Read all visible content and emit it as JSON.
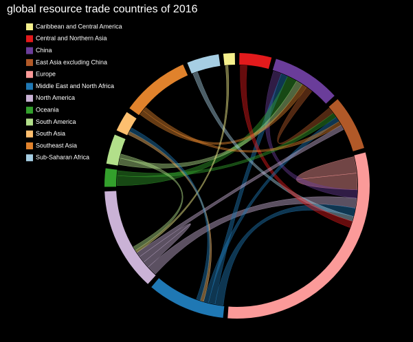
{
  "chart_data": {
    "type": "chord",
    "title": "global resource trade countries of 2016",
    "groups": [
      {
        "name": "Caribbean and Central America",
        "color": "#f5f08c",
        "value": 5
      },
      {
        "name": "Central and Northern Asia",
        "color": "#e31a1c",
        "value": 14
      },
      {
        "name": "China",
        "color": "#6a3d9a",
        "value": 30
      },
      {
        "name": "East Asia excluding China",
        "color": "#b15928",
        "value": 24
      },
      {
        "name": "Europe",
        "color": "#fb9a99",
        "value": 108
      },
      {
        "name": "Middle East and North Africa",
        "color": "#1f78b4",
        "value": 34
      },
      {
        "name": "North America",
        "color": "#cab2d6",
        "value": 45
      },
      {
        "name": "Oceania",
        "color": "#33a02c",
        "value": 8
      },
      {
        "name": "South America",
        "color": "#b2df8a",
        "value": 13
      },
      {
        "name": "South Asia",
        "color": "#fdbf6f",
        "value": 9
      },
      {
        "name": "Southeast Asia",
        "color": "#e0822c",
        "value": 30
      },
      {
        "name": "Sub-Saharan Africa",
        "color": "#a6cee3",
        "value": 14
      }
    ],
    "flows": [
      {
        "source": "Europe",
        "target": "Europe",
        "value": 20
      },
      {
        "source": "China",
        "target": "Europe",
        "value": 10
      },
      {
        "source": "North America",
        "target": "Europe",
        "value": 12
      },
      {
        "source": "Middle East and North Africa",
        "target": "Europe",
        "value": 10
      },
      {
        "source": "Middle East and North Africa",
        "target": "China",
        "value": 8
      },
      {
        "source": "Oceania",
        "target": "China",
        "value": 12
      },
      {
        "source": "South America",
        "target": "China",
        "value": 8
      },
      {
        "source": "Southeast Asia",
        "target": "China",
        "value": 6
      },
      {
        "source": "East Asia excluding China",
        "target": "China",
        "value": 8
      },
      {
        "source": "North America",
        "target": "North America",
        "value": 8
      },
      {
        "source": "Sub-Saharan Africa",
        "target": "Europe",
        "value": 6
      },
      {
        "source": "Central and Northern Asia",
        "target": "Europe",
        "value": 8
      },
      {
        "source": "Oceania",
        "target": "East Asia excluding China",
        "value": 6
      },
      {
        "source": "Middle East and North Africa",
        "target": "East Asia excluding China",
        "value": 6
      },
      {
        "source": "South Asia",
        "target": "Middle East and North Africa",
        "value": 4
      },
      {
        "source": "Southeast Asia",
        "target": "East Asia excluding China",
        "value": 5
      },
      {
        "source": "North America",
        "target": "East Asia excluding China",
        "value": 6
      },
      {
        "source": "Caribbean and Central America",
        "target": "North America",
        "value": 3
      },
      {
        "source": "South America",
        "target": "North America",
        "value": 5
      },
      {
        "source": "Middle East and North Africa",
        "target": "South Asia",
        "value": 5
      }
    ]
  }
}
